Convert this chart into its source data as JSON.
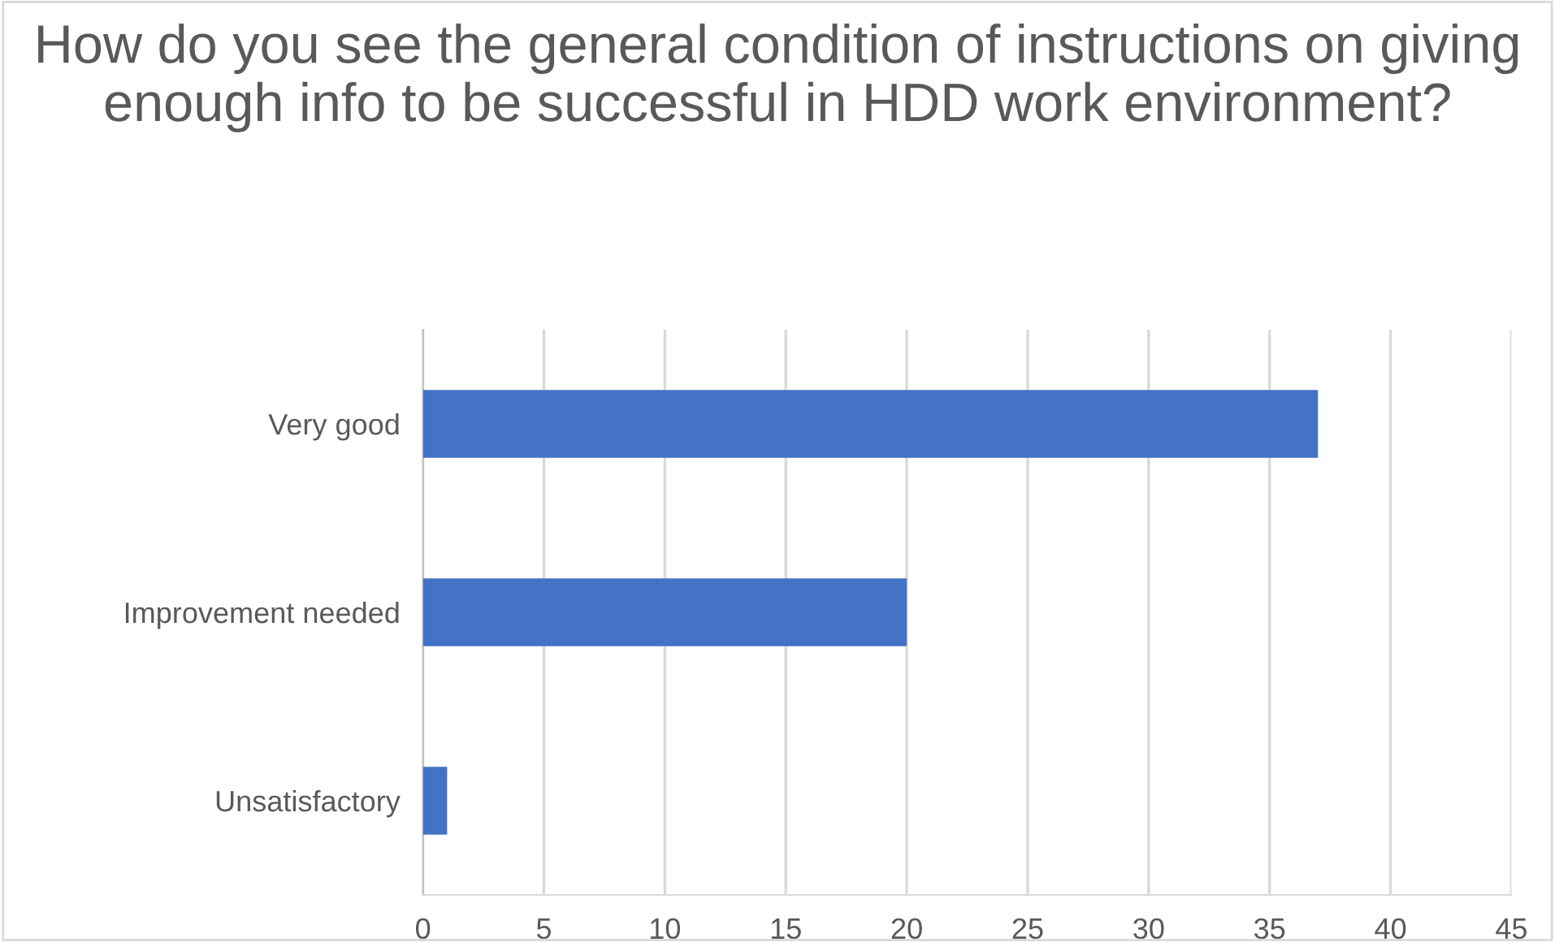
{
  "chart_data": {
    "type": "bar",
    "orientation": "horizontal",
    "title": "How do you see the general condition of instructions on giving enough info to be successful in HDD work environment?",
    "categories": [
      "Very good",
      "Improvement needed",
      "Unsatisfactory"
    ],
    "values": [
      37,
      20,
      1
    ],
    "color": "#4472c4",
    "xlim": [
      0,
      45
    ],
    "xticks": [
      0,
      5,
      10,
      15,
      20,
      25,
      30,
      35,
      40,
      45
    ],
    "grid": "x"
  }
}
